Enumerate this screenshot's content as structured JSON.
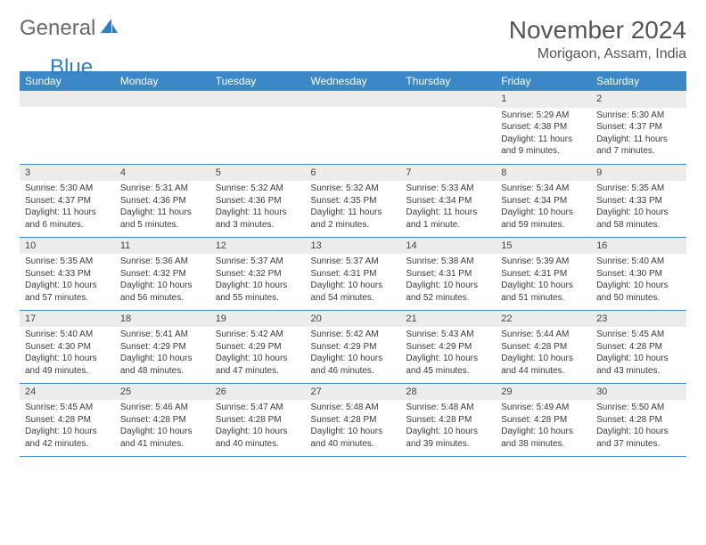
{
  "brand": {
    "text1": "General",
    "text2": "Blue",
    "color1": "#6a6a6a",
    "color2": "#2f7ec2"
  },
  "title": "November 2024",
  "subtitle": "Morigaon, Assam, India",
  "theme": {
    "header_bg": "#3c87c7",
    "header_fg": "#ffffff",
    "band_bg": "#ececec",
    "rule": "#3c87c7"
  },
  "day_headers": [
    "Sunday",
    "Monday",
    "Tuesday",
    "Wednesday",
    "Thursday",
    "Friday",
    "Saturday"
  ],
  "weeks": [
    [
      {
        "n": "",
        "sunrise": "",
        "sunset": "",
        "daylight": ""
      },
      {
        "n": "",
        "sunrise": "",
        "sunset": "",
        "daylight": ""
      },
      {
        "n": "",
        "sunrise": "",
        "sunset": "",
        "daylight": ""
      },
      {
        "n": "",
        "sunrise": "",
        "sunset": "",
        "daylight": ""
      },
      {
        "n": "",
        "sunrise": "",
        "sunset": "",
        "daylight": ""
      },
      {
        "n": "1",
        "sunrise": "Sunrise: 5:29 AM",
        "sunset": "Sunset: 4:38 PM",
        "daylight": "Daylight: 11 hours and 9 minutes."
      },
      {
        "n": "2",
        "sunrise": "Sunrise: 5:30 AM",
        "sunset": "Sunset: 4:37 PM",
        "daylight": "Daylight: 11 hours and 7 minutes."
      }
    ],
    [
      {
        "n": "3",
        "sunrise": "Sunrise: 5:30 AM",
        "sunset": "Sunset: 4:37 PM",
        "daylight": "Daylight: 11 hours and 6 minutes."
      },
      {
        "n": "4",
        "sunrise": "Sunrise: 5:31 AM",
        "sunset": "Sunset: 4:36 PM",
        "daylight": "Daylight: 11 hours and 5 minutes."
      },
      {
        "n": "5",
        "sunrise": "Sunrise: 5:32 AM",
        "sunset": "Sunset: 4:36 PM",
        "daylight": "Daylight: 11 hours and 3 minutes."
      },
      {
        "n": "6",
        "sunrise": "Sunrise: 5:32 AM",
        "sunset": "Sunset: 4:35 PM",
        "daylight": "Daylight: 11 hours and 2 minutes."
      },
      {
        "n": "7",
        "sunrise": "Sunrise: 5:33 AM",
        "sunset": "Sunset: 4:34 PM",
        "daylight": "Daylight: 11 hours and 1 minute."
      },
      {
        "n": "8",
        "sunrise": "Sunrise: 5:34 AM",
        "sunset": "Sunset: 4:34 PM",
        "daylight": "Daylight: 10 hours and 59 minutes."
      },
      {
        "n": "9",
        "sunrise": "Sunrise: 5:35 AM",
        "sunset": "Sunset: 4:33 PM",
        "daylight": "Daylight: 10 hours and 58 minutes."
      }
    ],
    [
      {
        "n": "10",
        "sunrise": "Sunrise: 5:35 AM",
        "sunset": "Sunset: 4:33 PM",
        "daylight": "Daylight: 10 hours and 57 minutes."
      },
      {
        "n": "11",
        "sunrise": "Sunrise: 5:36 AM",
        "sunset": "Sunset: 4:32 PM",
        "daylight": "Daylight: 10 hours and 56 minutes."
      },
      {
        "n": "12",
        "sunrise": "Sunrise: 5:37 AM",
        "sunset": "Sunset: 4:32 PM",
        "daylight": "Daylight: 10 hours and 55 minutes."
      },
      {
        "n": "13",
        "sunrise": "Sunrise: 5:37 AM",
        "sunset": "Sunset: 4:31 PM",
        "daylight": "Daylight: 10 hours and 54 minutes."
      },
      {
        "n": "14",
        "sunrise": "Sunrise: 5:38 AM",
        "sunset": "Sunset: 4:31 PM",
        "daylight": "Daylight: 10 hours and 52 minutes."
      },
      {
        "n": "15",
        "sunrise": "Sunrise: 5:39 AM",
        "sunset": "Sunset: 4:31 PM",
        "daylight": "Daylight: 10 hours and 51 minutes."
      },
      {
        "n": "16",
        "sunrise": "Sunrise: 5:40 AM",
        "sunset": "Sunset: 4:30 PM",
        "daylight": "Daylight: 10 hours and 50 minutes."
      }
    ],
    [
      {
        "n": "17",
        "sunrise": "Sunrise: 5:40 AM",
        "sunset": "Sunset: 4:30 PM",
        "daylight": "Daylight: 10 hours and 49 minutes."
      },
      {
        "n": "18",
        "sunrise": "Sunrise: 5:41 AM",
        "sunset": "Sunset: 4:29 PM",
        "daylight": "Daylight: 10 hours and 48 minutes."
      },
      {
        "n": "19",
        "sunrise": "Sunrise: 5:42 AM",
        "sunset": "Sunset: 4:29 PM",
        "daylight": "Daylight: 10 hours and 47 minutes."
      },
      {
        "n": "20",
        "sunrise": "Sunrise: 5:42 AM",
        "sunset": "Sunset: 4:29 PM",
        "daylight": "Daylight: 10 hours and 46 minutes."
      },
      {
        "n": "21",
        "sunrise": "Sunrise: 5:43 AM",
        "sunset": "Sunset: 4:29 PM",
        "daylight": "Daylight: 10 hours and 45 minutes."
      },
      {
        "n": "22",
        "sunrise": "Sunrise: 5:44 AM",
        "sunset": "Sunset: 4:28 PM",
        "daylight": "Daylight: 10 hours and 44 minutes."
      },
      {
        "n": "23",
        "sunrise": "Sunrise: 5:45 AM",
        "sunset": "Sunset: 4:28 PM",
        "daylight": "Daylight: 10 hours and 43 minutes."
      }
    ],
    [
      {
        "n": "24",
        "sunrise": "Sunrise: 5:45 AM",
        "sunset": "Sunset: 4:28 PM",
        "daylight": "Daylight: 10 hours and 42 minutes."
      },
      {
        "n": "25",
        "sunrise": "Sunrise: 5:46 AM",
        "sunset": "Sunset: 4:28 PM",
        "daylight": "Daylight: 10 hours and 41 minutes."
      },
      {
        "n": "26",
        "sunrise": "Sunrise: 5:47 AM",
        "sunset": "Sunset: 4:28 PM",
        "daylight": "Daylight: 10 hours and 40 minutes."
      },
      {
        "n": "27",
        "sunrise": "Sunrise: 5:48 AM",
        "sunset": "Sunset: 4:28 PM",
        "daylight": "Daylight: 10 hours and 40 minutes."
      },
      {
        "n": "28",
        "sunrise": "Sunrise: 5:48 AM",
        "sunset": "Sunset: 4:28 PM",
        "daylight": "Daylight: 10 hours and 39 minutes."
      },
      {
        "n": "29",
        "sunrise": "Sunrise: 5:49 AM",
        "sunset": "Sunset: 4:28 PM",
        "daylight": "Daylight: 10 hours and 38 minutes."
      },
      {
        "n": "30",
        "sunrise": "Sunrise: 5:50 AM",
        "sunset": "Sunset: 4:28 PM",
        "daylight": "Daylight: 10 hours and 37 minutes."
      }
    ]
  ]
}
